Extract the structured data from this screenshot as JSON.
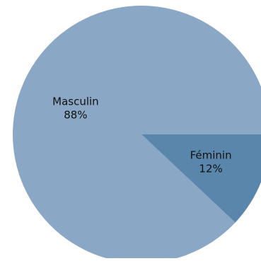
{
  "chart_data": {
    "type": "pie",
    "start_angle_deg": 0,
    "direction": "counterclockwise",
    "slices": [
      {
        "label": "Masculin",
        "value": 88,
        "value_label": "88%",
        "color": "#8aa8c6"
      },
      {
        "label": "Féminin",
        "value": 12,
        "value_label": "12%",
        "color": "#5a86ab"
      }
    ]
  }
}
